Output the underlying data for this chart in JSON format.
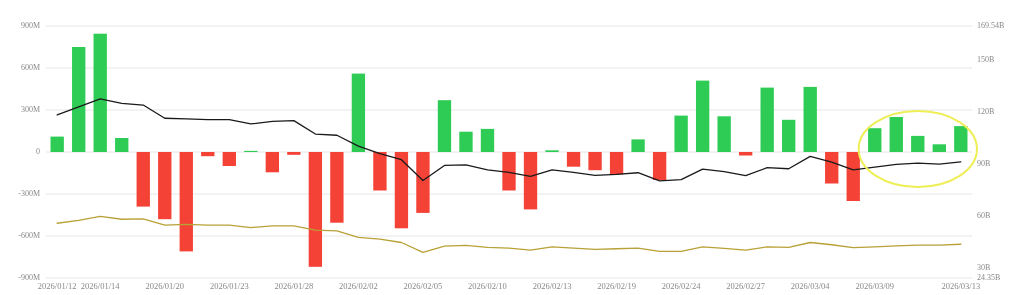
{
  "chart_data": {
    "type": "bar",
    "categories": [
      "2026/01/12",
      null,
      "2026/01/14",
      null,
      null,
      "2026/01/20",
      null,
      null,
      "2026/01/23",
      null,
      null,
      "2026/01/28",
      null,
      null,
      "2026/02/02",
      null,
      null,
      "2026/02/05",
      null,
      null,
      "2026/02/10",
      null,
      null,
      "2026/02/13",
      null,
      null,
      "2026/02/19",
      null,
      null,
      "2026/02/24",
      null,
      null,
      "2026/02/27",
      null,
      null,
      "2026/03/04",
      null,
      null,
      "2026/03/09",
      null,
      null,
      null,
      "2026/03/13"
    ],
    "series": [
      {
        "values": [
          110,
          750,
          845,
          100,
          -390,
          -480,
          -710,
          -30,
          -100,
          8,
          -145,
          -20,
          -820,
          -505,
          560,
          -275,
          -545,
          -435,
          370,
          145,
          165,
          -275,
          -410,
          12,
          -105,
          -130,
          -160,
          90,
          -200,
          260,
          510,
          255,
          -25,
          460,
          230,
          465,
          -225,
          -350,
          170,
          250,
          115,
          55,
          185
        ],
        "colors": [
          "#2ecc55",
          "#2ecc55",
          "#2ecc55",
          "#2ecc55",
          "#f44336",
          "#f44336",
          "#f44336",
          "#f44336",
          "#f44336",
          "#2ecc55",
          "#f44336",
          "#f44336",
          "#f44336",
          "#f44336",
          "#2ecc55",
          "#f44336",
          "#f44336",
          "#f44336",
          "#2ecc55",
          "#2ecc55",
          "#2ecc55",
          "#f44336",
          "#f44336",
          "#2ecc55",
          "#f44336",
          "#f44336",
          "#f44336",
          "#2ecc55",
          "#f44336",
          "#2ecc55",
          "#2ecc55",
          "#2ecc55",
          "#f44336",
          "#2ecc55",
          "#2ecc55",
          "#2ecc55",
          "#f44336",
          "#f44336",
          "#2ecc55",
          "#2ecc55",
          "#2ecc55",
          "#2ecc55",
          "#2ecc55"
        ]
      },
      {
        "type": "line",
        "axis": "y2",
        "color": "#1a1a1a",
        "values": [
          118.3,
          123,
          127.6,
          125,
          124,
          116.4,
          116,
          115.6,
          115.6,
          113.1,
          114.6,
          115,
          107.3,
          106.6,
          100.3,
          96,
          92.5,
          80.5,
          89.2,
          89.5,
          86.7,
          85.2,
          82.9,
          86.7,
          85.2,
          83.5,
          84,
          85,
          80.3,
          81,
          87.1,
          85.6,
          83.3,
          87.9,
          87.3,
          94.4,
          91.1,
          86.7,
          88.2,
          89.8,
          90.5,
          90,
          91.3
        ]
      },
      {
        "type": "line",
        "axis": "y2",
        "color": "#b8a136",
        "values": [
          55.9,
          57.6,
          59.8,
          58.2,
          58.4,
          54.8,
          55.2,
          54.8,
          54.8,
          53.4,
          54.4,
          54.4,
          51.9,
          51.5,
          47.7,
          46.7,
          44.8,
          39.1,
          42.7,
          43.1,
          42,
          41.6,
          40.4,
          42.3,
          41.6,
          40.8,
          41.2,
          41.6,
          39.7,
          39.7,
          42.3,
          41.4,
          40.4,
          42.3,
          42,
          44.8,
          43.5,
          41.8,
          42.3,
          42.9,
          43.3,
          43.3,
          43.8
        ]
      }
    ],
    "ylim": [
      -900,
      900
    ],
    "yticks": [
      {
        "value": -900,
        "label": "-900M"
      },
      {
        "value": -600,
        "label": "-600M"
      },
      {
        "value": -300,
        "label": "-300M"
      },
      0,
      {
        "value": 300,
        "label": "300M"
      },
      {
        "value": 600,
        "label": "600M"
      },
      {
        "value": 900,
        "label": "900M"
      }
    ],
    "y2lim": [
      24.35,
      169.54
    ],
    "y2ticks": [
      {
        "value": 24.35,
        "label": "24.35B"
      },
      {
        "value": 30,
        "label": "30B"
      },
      {
        "value": 60,
        "label": "60B"
      },
      {
        "value": 90,
        "label": "90B"
      },
      {
        "value": 120,
        "label": "120B"
      },
      {
        "value": 150,
        "label": "150B"
      },
      {
        "value": 169.54,
        "label": "169.54B"
      }
    ],
    "grid": "y"
  }
}
